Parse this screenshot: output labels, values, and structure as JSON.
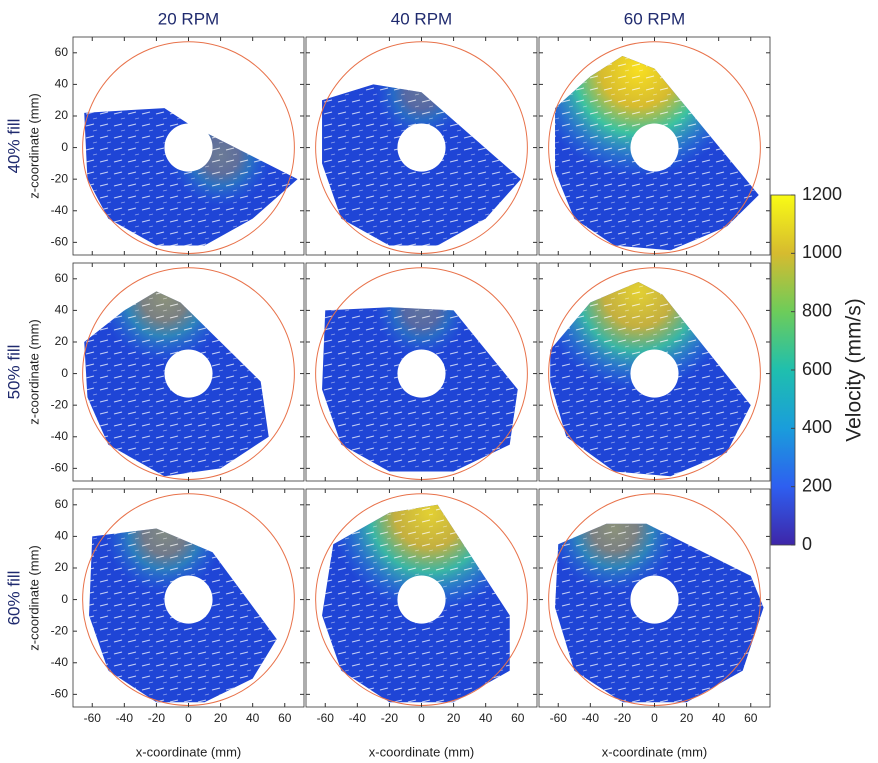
{
  "chart_data": {
    "type": "vector-field",
    "columns": [
      "20 RPM",
      "40 RPM",
      "60 RPM"
    ],
    "rows": [
      "40% fill",
      "50% fill",
      "60% fill"
    ],
    "xlabel": "x-coordinate (mm)",
    "ylabel": "z-coordinate (mm)",
    "xlim": [
      -72,
      72
    ],
    "ylim": [
      -68,
      70
    ],
    "xticks": [
      -60,
      -40,
      -20,
      0,
      20,
      40,
      60
    ],
    "yticks": [
      -60,
      -40,
      -20,
      0,
      20,
      40,
      60
    ],
    "colorbar": {
      "label": "Velocity (mm/s)",
      "lim": [
        0,
        1200
      ],
      "ticks": [
        0,
        200,
        400,
        600,
        800,
        1000,
        1200
      ],
      "colors": [
        "#3e26a8",
        "#2e5ff0",
        "#1a9ddb",
        "#1fbfae",
        "#6dcc5a",
        "#d6bb2f",
        "#f9fb15"
      ]
    }
  }
}
